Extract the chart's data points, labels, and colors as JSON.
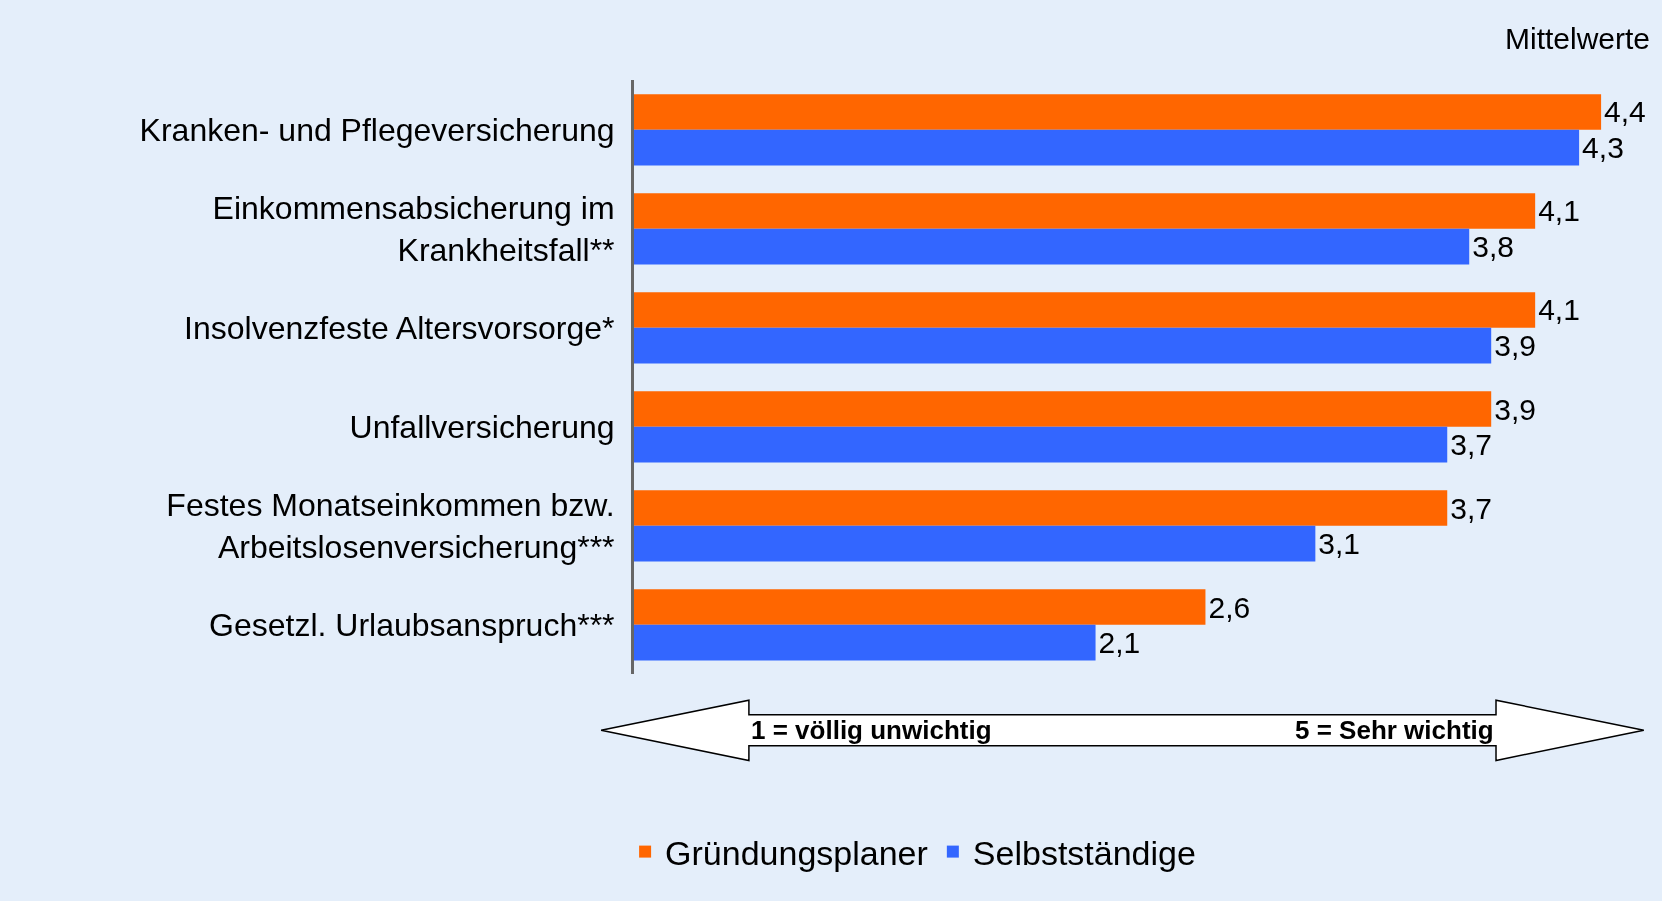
{
  "chart_data": {
    "type": "bar",
    "orientation": "horizontal",
    "categories": [
      "Kranken- und Pflegeversicherung",
      "Einkommensabsicherung im\nKrankheitsfall**",
      "Insolvenzfeste Altersvorsorge*",
      "Unfallversicherung",
      "Festes Monatseinkommen bzw.\nArbeitslosenversicherung***",
      "Gesetzl. Urlaubsanspruch***"
    ],
    "series": [
      {
        "name": "Gründungsplaner",
        "color": "#ff6600",
        "values": [
          4.4,
          4.1,
          4.1,
          3.9,
          3.7,
          2.6
        ],
        "value_labels": [
          "4,4",
          "4,1",
          "4,1",
          "3,9",
          "3,7",
          "2,6"
        ]
      },
      {
        "name": "Selbstständige",
        "color": "#3366ff",
        "values": [
          4.3,
          3.8,
          3.9,
          3.7,
          3.1,
          2.1
        ],
        "value_labels": [
          "4,3",
          "3,8",
          "3,9",
          "3,7",
          "3,1",
          "2,1"
        ]
      }
    ],
    "tick_labels": "y",
    "grid": false,
    "legend": "bottom",
    "annotations": [
      "Mittelwerte",
      "1 = völlig unwichtig",
      "5 = Sehr wichtig"
    ]
  }
}
